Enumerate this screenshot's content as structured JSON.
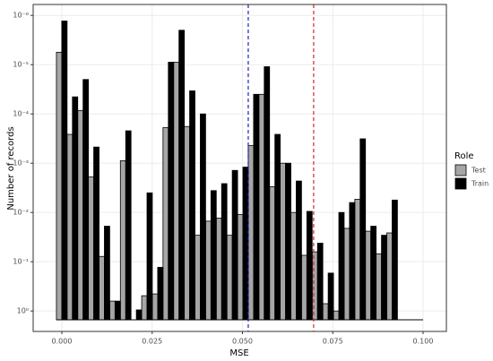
{
  "chart_data": {
    "type": "histogram",
    "x_label": "MSE",
    "y_label": "Number of records",
    "legend_title": "Role",
    "legend_position": "right",
    "bins": [
      -0.0015,
      0.00145,
      0.0044,
      0.00735,
      0.0103,
      0.01325,
      0.0162,
      0.01915,
      0.0221,
      0.02505,
      0.028,
      0.03095,
      0.0339,
      0.03685,
      0.0398,
      0.04275,
      0.0457,
      0.04865,
      0.0516,
      0.05455,
      0.0575,
      0.06045,
      0.0634,
      0.06635,
      0.0693,
      0.07225,
      0.0752,
      0.07815,
      0.0811,
      0.08405,
      0.087,
      0.08995,
      0.0929
    ],
    "series": [
      {
        "name": "Test",
        "color": "#a6a6a6",
        "values": [
          5.6e-06,
          0.00026,
          8.5e-05,
          0.0019,
          0.078,
          0.63,
          0.00089,
          null,
          0.49,
          0.45,
          0.00019,
          8.9e-06,
          0.00018,
          0.029,
          0.015,
          0.013,
          0.029,
          0.011,
          0.00044,
          4e-05,
          0.003,
          0.001,
          0.01,
          0.074,
          0.063,
          0.71,
          1.0,
          0.021,
          0.0054,
          0.024,
          0.069,
          0.026
        ]
      },
      {
        "name": "Train",
        "color": "#000000",
        "values": [
          1.3e-06,
          4.5e-05,
          2e-05,
          0.00047,
          0.019,
          0.63,
          0.00022,
          0.95,
          0.004,
          0.13,
          8.9e-06,
          2e-06,
          3.4e-05,
          0.0001,
          0.0036,
          0.0026,
          0.0014,
          0.0012,
          4e-05,
          1.1e-05,
          0.00026,
          0.001,
          0.0023,
          0.0095,
          0.042,
          0.17,
          0.01,
          0.0063,
          0.00032,
          0.019,
          0.029,
          0.0056
        ]
      }
    ],
    "vlines": [
      {
        "x": 0.0516,
        "color": "#1f1fbf"
      },
      {
        "x": 0.0697,
        "color": "#d62728"
      }
    ],
    "xlim": [
      -0.00794,
      0.10645
    ],
    "xticks": [
      {
        "value": 0,
        "label": "0.000"
      },
      {
        "value": 0.025,
        "label": "0.025"
      },
      {
        "value": 0.05,
        "label": "0.050"
      },
      {
        "value": 0.075,
        "label": "0.075"
      },
      {
        "value": 0.1,
        "label": "0.100"
      }
    ],
    "y_log": true,
    "ylim": [
      2.6,
      6e-07
    ],
    "yticks": [
      {
        "value": 1e-06,
        "label": "10⁻⁶"
      },
      {
        "value": 1e-05,
        "label": "10⁻⁵"
      },
      {
        "value": 0.0001,
        "label": "10⁻⁴"
      },
      {
        "value": 0.001,
        "label": "10⁻³"
      },
      {
        "value": 0.01,
        "label": "10⁻²"
      },
      {
        "value": 0.1,
        "label": "10⁻¹"
      },
      {
        "value": 1,
        "label": "10⁰"
      }
    ],
    "grid": true
  }
}
